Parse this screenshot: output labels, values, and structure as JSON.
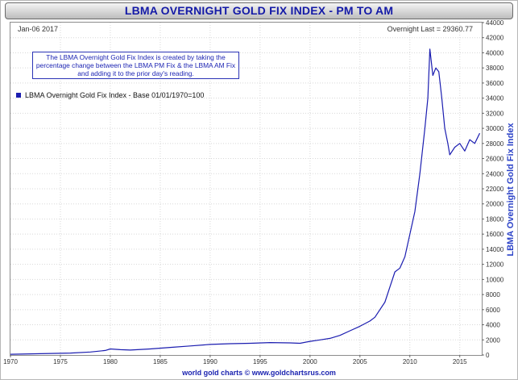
{
  "header": {
    "title": "LBMA OVERNIGHT GOLD FIX INDEX - PM TO AM"
  },
  "info": {
    "date": "Jan-06  2017",
    "last": "Overnight Last = 29360.77"
  },
  "note": {
    "text": "The LBMA Overnight Gold Fix Index is created by taking the percentage change between the LBMA PM Fix & the LBMA AM Fix and adding it to the prior day's reading."
  },
  "footer": {
    "text": "world gold charts © www.goldchartsrus.com"
  },
  "colors": {
    "line": "#1b1db0",
    "title_text": "#141aa7",
    "axis_label": "#2c43c8"
  },
  "chart_data": {
    "type": "line",
    "title": "LBMA OVERNIGHT GOLD FIX INDEX - PM TO AM",
    "ylabel": "LBMA Overnight Gold Fix Index",
    "ylim": [
      0,
      44000
    ],
    "xlim": [
      1970,
      2017.2
    ],
    "y_ticks": [
      0,
      2000,
      4000,
      6000,
      8000,
      10000,
      12000,
      14000,
      16000,
      18000,
      20000,
      22000,
      24000,
      26000,
      28000,
      30000,
      32000,
      34000,
      36000,
      38000,
      40000,
      42000,
      44000
    ],
    "x_ticks": [
      1970,
      1975,
      1980,
      1985,
      1990,
      1995,
      2000,
      2005,
      2010,
      2015
    ],
    "grid": true,
    "legend_position": "top-left",
    "series": [
      {
        "name": "LBMA Overnight Gold Fix Index - Base 01/01/1970=100",
        "x": [
          1970,
          1972,
          1974,
          1976,
          1978,
          1979.5,
          1980,
          1981,
          1982,
          1984,
          1986,
          1988,
          1990,
          1992,
          1994,
          1996,
          1998,
          1999,
          2000,
          2001,
          2002,
          2003,
          2004,
          2005,
          2006,
          2006.5,
          2007,
          2007.5,
          2008,
          2008.5,
          2009,
          2009.5,
          2010,
          2010.5,
          2011,
          2011.5,
          2011.8,
          2012,
          2012.3,
          2012.6,
          2012.9,
          2013.2,
          2013.5,
          2013.8,
          2014,
          2014.5,
          2015,
          2015.5,
          2016,
          2016.5,
          2017
        ],
        "y": [
          100,
          150,
          200,
          260,
          400,
          600,
          800,
          700,
          650,
          800,
          1000,
          1200,
          1400,
          1500,
          1550,
          1650,
          1600,
          1550,
          1800,
          2000,
          2200,
          2600,
          3200,
          3800,
          4500,
          5000,
          6000,
          7000,
          9000,
          11000,
          11500,
          13000,
          16000,
          19000,
          24000,
          30000,
          34000,
          40500,
          37000,
          38000,
          37500,
          34000,
          30000,
          28000,
          26500,
          27500,
          28000,
          27000,
          28500,
          28000,
          29360.77
        ]
      }
    ]
  }
}
